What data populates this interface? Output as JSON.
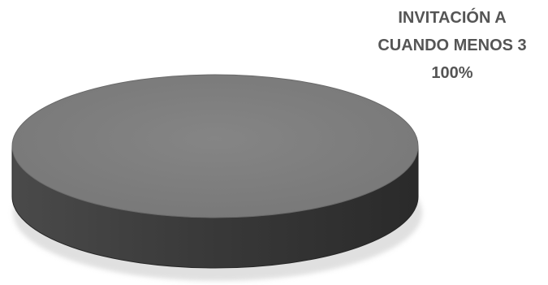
{
  "chart_data": {
    "type": "pie",
    "style": "3d",
    "title": "",
    "slices": [
      {
        "label_lines": [
          "INVITACIÓN A",
          "CUANDO MENOS 3"
        ],
        "value": 100,
        "value_label": "100%",
        "color": "#7a7a7a"
      }
    ],
    "legend": "none",
    "label_color": "#555555"
  }
}
